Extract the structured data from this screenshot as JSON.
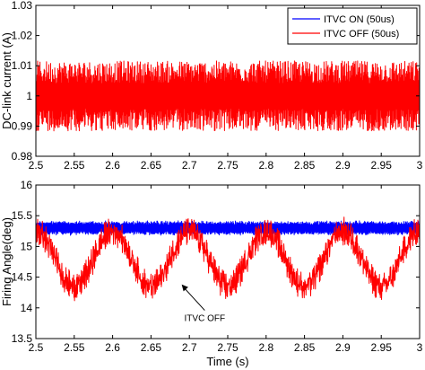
{
  "chart_data": [
    {
      "type": "line",
      "title": "",
      "xlabel": "",
      "ylabel": "DC-link current (A)",
      "xlim": [
        2.5,
        3.0
      ],
      "ylim": [
        0.98,
        1.03
      ],
      "x_ticks": [
        "2.5",
        "2.55",
        "2.6",
        "2.65",
        "2.7",
        "2.75",
        "2.8",
        "2.85",
        "2.9",
        "2.95",
        "3"
      ],
      "y_ticks": [
        "0.98",
        "0.99",
        "1",
        "1.01",
        "1.02",
        "1.03"
      ],
      "grid": false,
      "legend_position": "top-right",
      "series": [
        {
          "name": "ITVC ON (50us)",
          "color": "#0000ff",
          "center": 1.0,
          "envelope_min": 0.995,
          "envelope_max": 1.003
        },
        {
          "name": "ITVC OFF (50us)",
          "color": "#ff0000",
          "center": 1.0,
          "envelope_min": 0.985,
          "envelope_max": 1.014
        }
      ]
    },
    {
      "type": "line",
      "title": "",
      "xlabel": "Time (s)",
      "ylabel": "Firing Angle(deg)",
      "xlim": [
        2.5,
        3.0
      ],
      "ylim": [
        13.5,
        16
      ],
      "x_ticks": [
        "2.5",
        "2.55",
        "2.6",
        "2.65",
        "2.7",
        "2.75",
        "2.8",
        "2.85",
        "2.9",
        "2.95",
        "3"
      ],
      "y_ticks": [
        "13.5",
        "14",
        "14.5",
        "15",
        "15.5",
        "16"
      ],
      "grid": false,
      "annotation": {
        "text": "ITVC OFF",
        "x": 2.72,
        "y": 13.93,
        "arrow_to_x": 2.69,
        "arrow_to_y": 14.38
      },
      "series": [
        {
          "name": "ITVC ON",
          "color": "#0000ff",
          "center": 15.3,
          "envelope_min": 15.15,
          "envelope_max": 15.42
        },
        {
          "name": "ITVC OFF",
          "color": "#ff0000",
          "center_min": 14.35,
          "center_max": 15.25,
          "envelope_min": 14.05,
          "envelope_max": 15.55,
          "period_s": 0.1,
          "minima_x": [
            2.55,
            2.66,
            2.76,
            2.86,
            2.96
          ]
        }
      ]
    }
  ]
}
